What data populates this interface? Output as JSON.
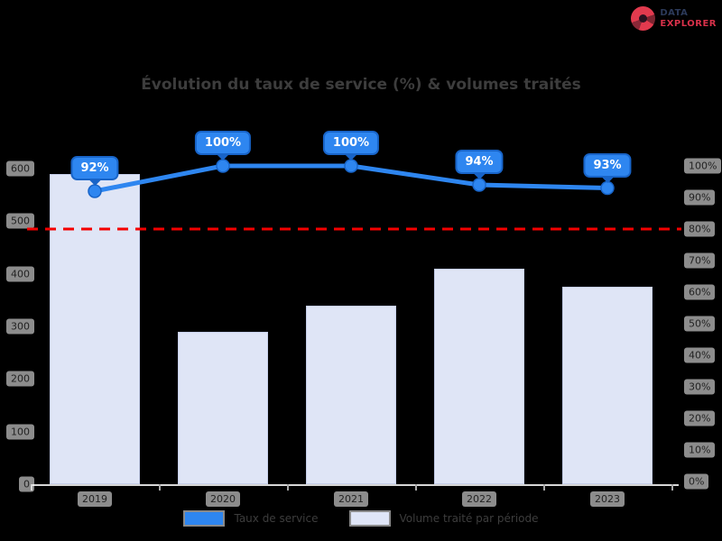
{
  "logo": {
    "icon": "shutter-icon",
    "line1": "DATA",
    "line2": "EXPLORER",
    "line1_color": "#2c3a5a",
    "line2_color": "#d8314a"
  },
  "chart_data": {
    "type": "combo",
    "title": "Évolution du taux de service (%) & volumes traités",
    "categories": [
      "2019",
      "2020",
      "2021",
      "2022",
      "2023"
    ],
    "series": [
      {
        "name": "Taux de service",
        "type": "line",
        "axis": "right",
        "unit": "%",
        "color": "#2e86f0",
        "values": [
          92,
          100,
          100,
          94,
          93
        ],
        "data_labels": [
          "92%",
          "100%",
          "100%",
          "94%",
          "93%"
        ]
      },
      {
        "name": "Volume traité par période",
        "type": "bar",
        "axis": "left",
        "color": "#dfe5f6",
        "values": [
          590,
          290,
          340,
          410,
          375
        ]
      }
    ],
    "target_line": {
      "value": 80,
      "axis": "right",
      "color": "#f40000",
      "style": "dashed"
    },
    "left_axis": {
      "min": 0,
      "max": 600,
      "ticks": [
        600,
        500,
        400,
        300,
        200,
        100,
        0
      ]
    },
    "right_axis": {
      "min": 0,
      "max": 100,
      "unit": "%",
      "ticks": [
        100,
        90,
        80,
        70,
        60,
        50,
        40,
        30,
        20,
        10,
        0
      ]
    },
    "legend_position": "bottom",
    "grid": false
  },
  "colors": {
    "line": "#2e86f0",
    "line_border": "#1864c8",
    "bar_fill": "#dfe5f6",
    "bar_border": "#c4cde9",
    "target": "#f40000",
    "title_text": "#3d3d3d",
    "tick_chip_bg": "rgba(255,255,255,0.55)"
  }
}
